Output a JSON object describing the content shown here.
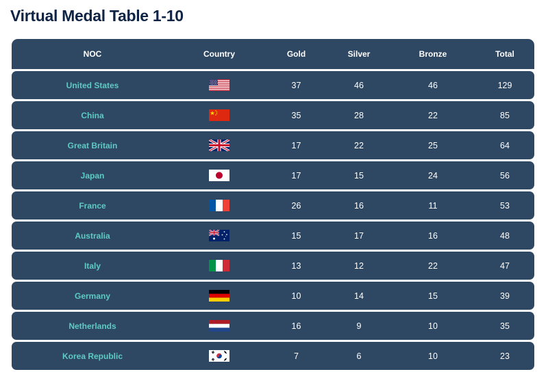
{
  "title": "Virtual Medal Table 1-10",
  "headers": {
    "noc": "NOC",
    "country": "Country",
    "gold": "Gold",
    "silver": "Silver",
    "bronze": "Bronze",
    "total": "Total"
  },
  "colors": {
    "title": "#0f2444",
    "row_background": "#2e4763",
    "noc_text": "#5ecbc4",
    "value_text": "#ffffff"
  },
  "rows": [
    {
      "noc": "United States",
      "flag": "us-flag-icon",
      "gold": "37",
      "silver": "46",
      "bronze": "46",
      "total": "129"
    },
    {
      "noc": "China",
      "flag": "cn-flag-icon",
      "gold": "35",
      "silver": "28",
      "bronze": "22",
      "total": "85"
    },
    {
      "noc": "Great Britain",
      "flag": "gb-flag-icon",
      "gold": "17",
      "silver": "22",
      "bronze": "25",
      "total": "64"
    },
    {
      "noc": "Japan",
      "flag": "jp-flag-icon",
      "gold": "17",
      "silver": "15",
      "bronze": "24",
      "total": "56"
    },
    {
      "noc": "France",
      "flag": "fr-flag-icon",
      "gold": "26",
      "silver": "16",
      "bronze": "11",
      "total": "53"
    },
    {
      "noc": "Australia",
      "flag": "au-flag-icon",
      "gold": "15",
      "silver": "17",
      "bronze": "16",
      "total": "48"
    },
    {
      "noc": "Italy",
      "flag": "it-flag-icon",
      "gold": "13",
      "silver": "12",
      "bronze": "22",
      "total": "47"
    },
    {
      "noc": "Germany",
      "flag": "de-flag-icon",
      "gold": "10",
      "silver": "14",
      "bronze": "15",
      "total": "39"
    },
    {
      "noc": "Netherlands",
      "flag": "nl-flag-icon",
      "gold": "16",
      "silver": "9",
      "bronze": "10",
      "total": "35"
    },
    {
      "noc": "Korea Republic",
      "flag": "kr-flag-icon",
      "gold": "7",
      "silver": "6",
      "bronze": "10",
      "total": "23"
    }
  ]
}
